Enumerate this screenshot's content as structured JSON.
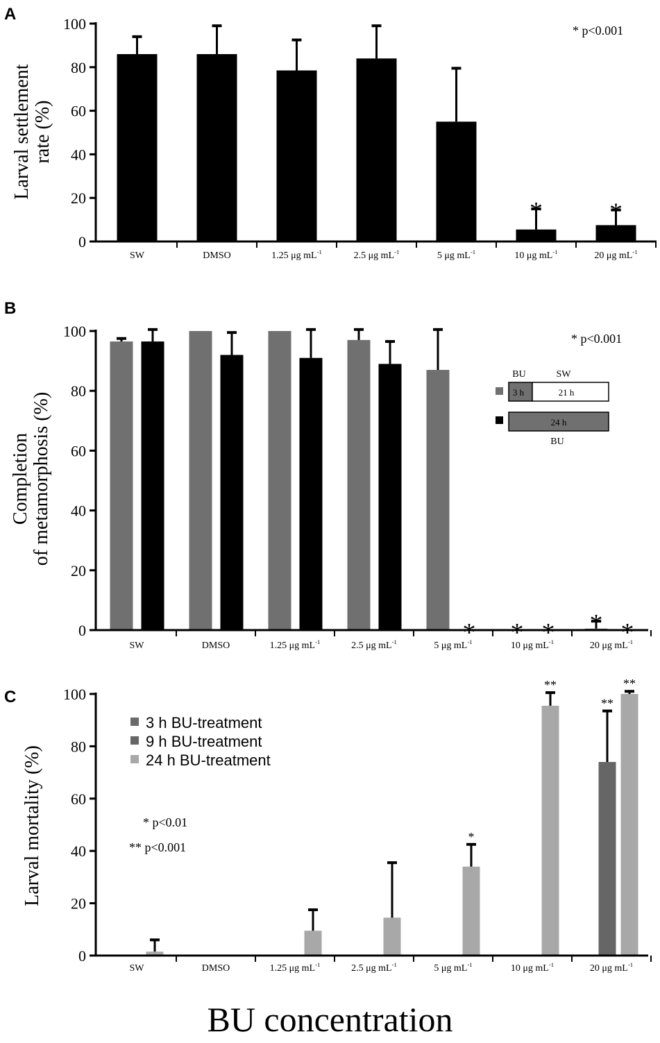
{
  "xlabel": "BU concentration",
  "chart_data": [
    {
      "panel": "A",
      "type": "bar",
      "ylabel": "Larval settlement rate (%)",
      "ylim": [
        0,
        100
      ],
      "yticks": [
        0,
        20,
        40,
        60,
        80,
        100
      ],
      "categories": [
        "SW",
        "DMSO",
        "1.25 μg mL-1",
        "2.5 μg mL-1",
        "5 μg mL-1",
        "10 μg mL-1",
        "20 μg mL-1"
      ],
      "series": [
        {
          "color": "#000000",
          "values": [
            86,
            86,
            78.5,
            84,
            55,
            5.5,
            7.5
          ],
          "errors": [
            8,
            13,
            14,
            15,
            24.5,
            9.5,
            7
          ],
          "sig": [
            "",
            "",
            "",
            "",
            "",
            "*",
            "*"
          ]
        }
      ],
      "annotation": "* p<0.001"
    },
    {
      "panel": "B",
      "type": "bar",
      "ylabel": "Completion of metamorphosis (%)",
      "ylim": [
        0,
        100
      ],
      "yticks": [
        0,
        20,
        40,
        60,
        80,
        100
      ],
      "categories": [
        "SW",
        "DMSO",
        "1.25 μg mL-1",
        "2.5 μg mL-1",
        "5 μg mL-1",
        "10 μg mL-1",
        "20 μg mL-1"
      ],
      "series": [
        {
          "color": "#707070",
          "values": [
            96.5,
            100,
            100,
            97,
            87,
            0,
            0.5
          ],
          "errors": [
            1,
            0,
            0,
            3.5,
            13.5,
            0,
            2.5
          ],
          "sig": [
            "",
            "",
            "",
            "",
            "",
            "*",
            "*"
          ]
        },
        {
          "color": "#000000",
          "values": [
            96.5,
            92,
            91,
            89,
            0,
            0,
            0
          ],
          "errors": [
            4,
            7.5,
            9.5,
            7.5,
            0,
            0,
            0
          ],
          "sig": [
            "",
            "",
            "",
            "",
            "*",
            "*",
            "*"
          ]
        }
      ],
      "annotation": "* p<0.001",
      "inset": {
        "bu": "BU",
        "sw": "SW",
        "three_h": "3 h",
        "twentyone_h": "21 h",
        "twentyfour_h": "24 h",
        "bu_bottom": "BU"
      }
    },
    {
      "panel": "C",
      "type": "bar",
      "ylabel": "Larval mortality (%)",
      "ylim": [
        0,
        100
      ],
      "yticks": [
        0,
        20,
        40,
        60,
        80,
        100
      ],
      "categories": [
        "SW",
        "DMSO",
        "1.25 μg mL-1",
        "2.5 μg mL-1",
        "5 μg mL-1",
        "10 μg mL-1",
        "20 μg mL-1"
      ],
      "series": [
        {
          "name": "3 h BU-treatment",
          "color": "#6b6b6b",
          "values": [
            0,
            0,
            0,
            0,
            0,
            0,
            0
          ],
          "errors": [
            0,
            0,
            0,
            0,
            0,
            0,
            0
          ],
          "sig": [
            "",
            "",
            "",
            "",
            "",
            "",
            ""
          ]
        },
        {
          "name": "9 h BU-treatment",
          "color": "#666666",
          "values": [
            0,
            0,
            0,
            0,
            0,
            0,
            74
          ],
          "errors": [
            0,
            0,
            0,
            0,
            0,
            0,
            19.5
          ],
          "sig": [
            "",
            "",
            "",
            "",
            "",
            "",
            "**"
          ]
        },
        {
          "name": "24 h BU-treatment",
          "color": "#a8a8a8",
          "values": [
            1.5,
            0,
            9.5,
            14.5,
            34,
            95.5,
            100
          ],
          "errors": [
            4.5,
            0,
            8,
            21,
            8.5,
            5,
            1
          ],
          "sig": [
            "",
            "",
            "",
            "",
            "*",
            "**",
            "**"
          ]
        }
      ],
      "annotations": [
        "* p<0.01",
        "** p<0.001"
      ]
    }
  ]
}
